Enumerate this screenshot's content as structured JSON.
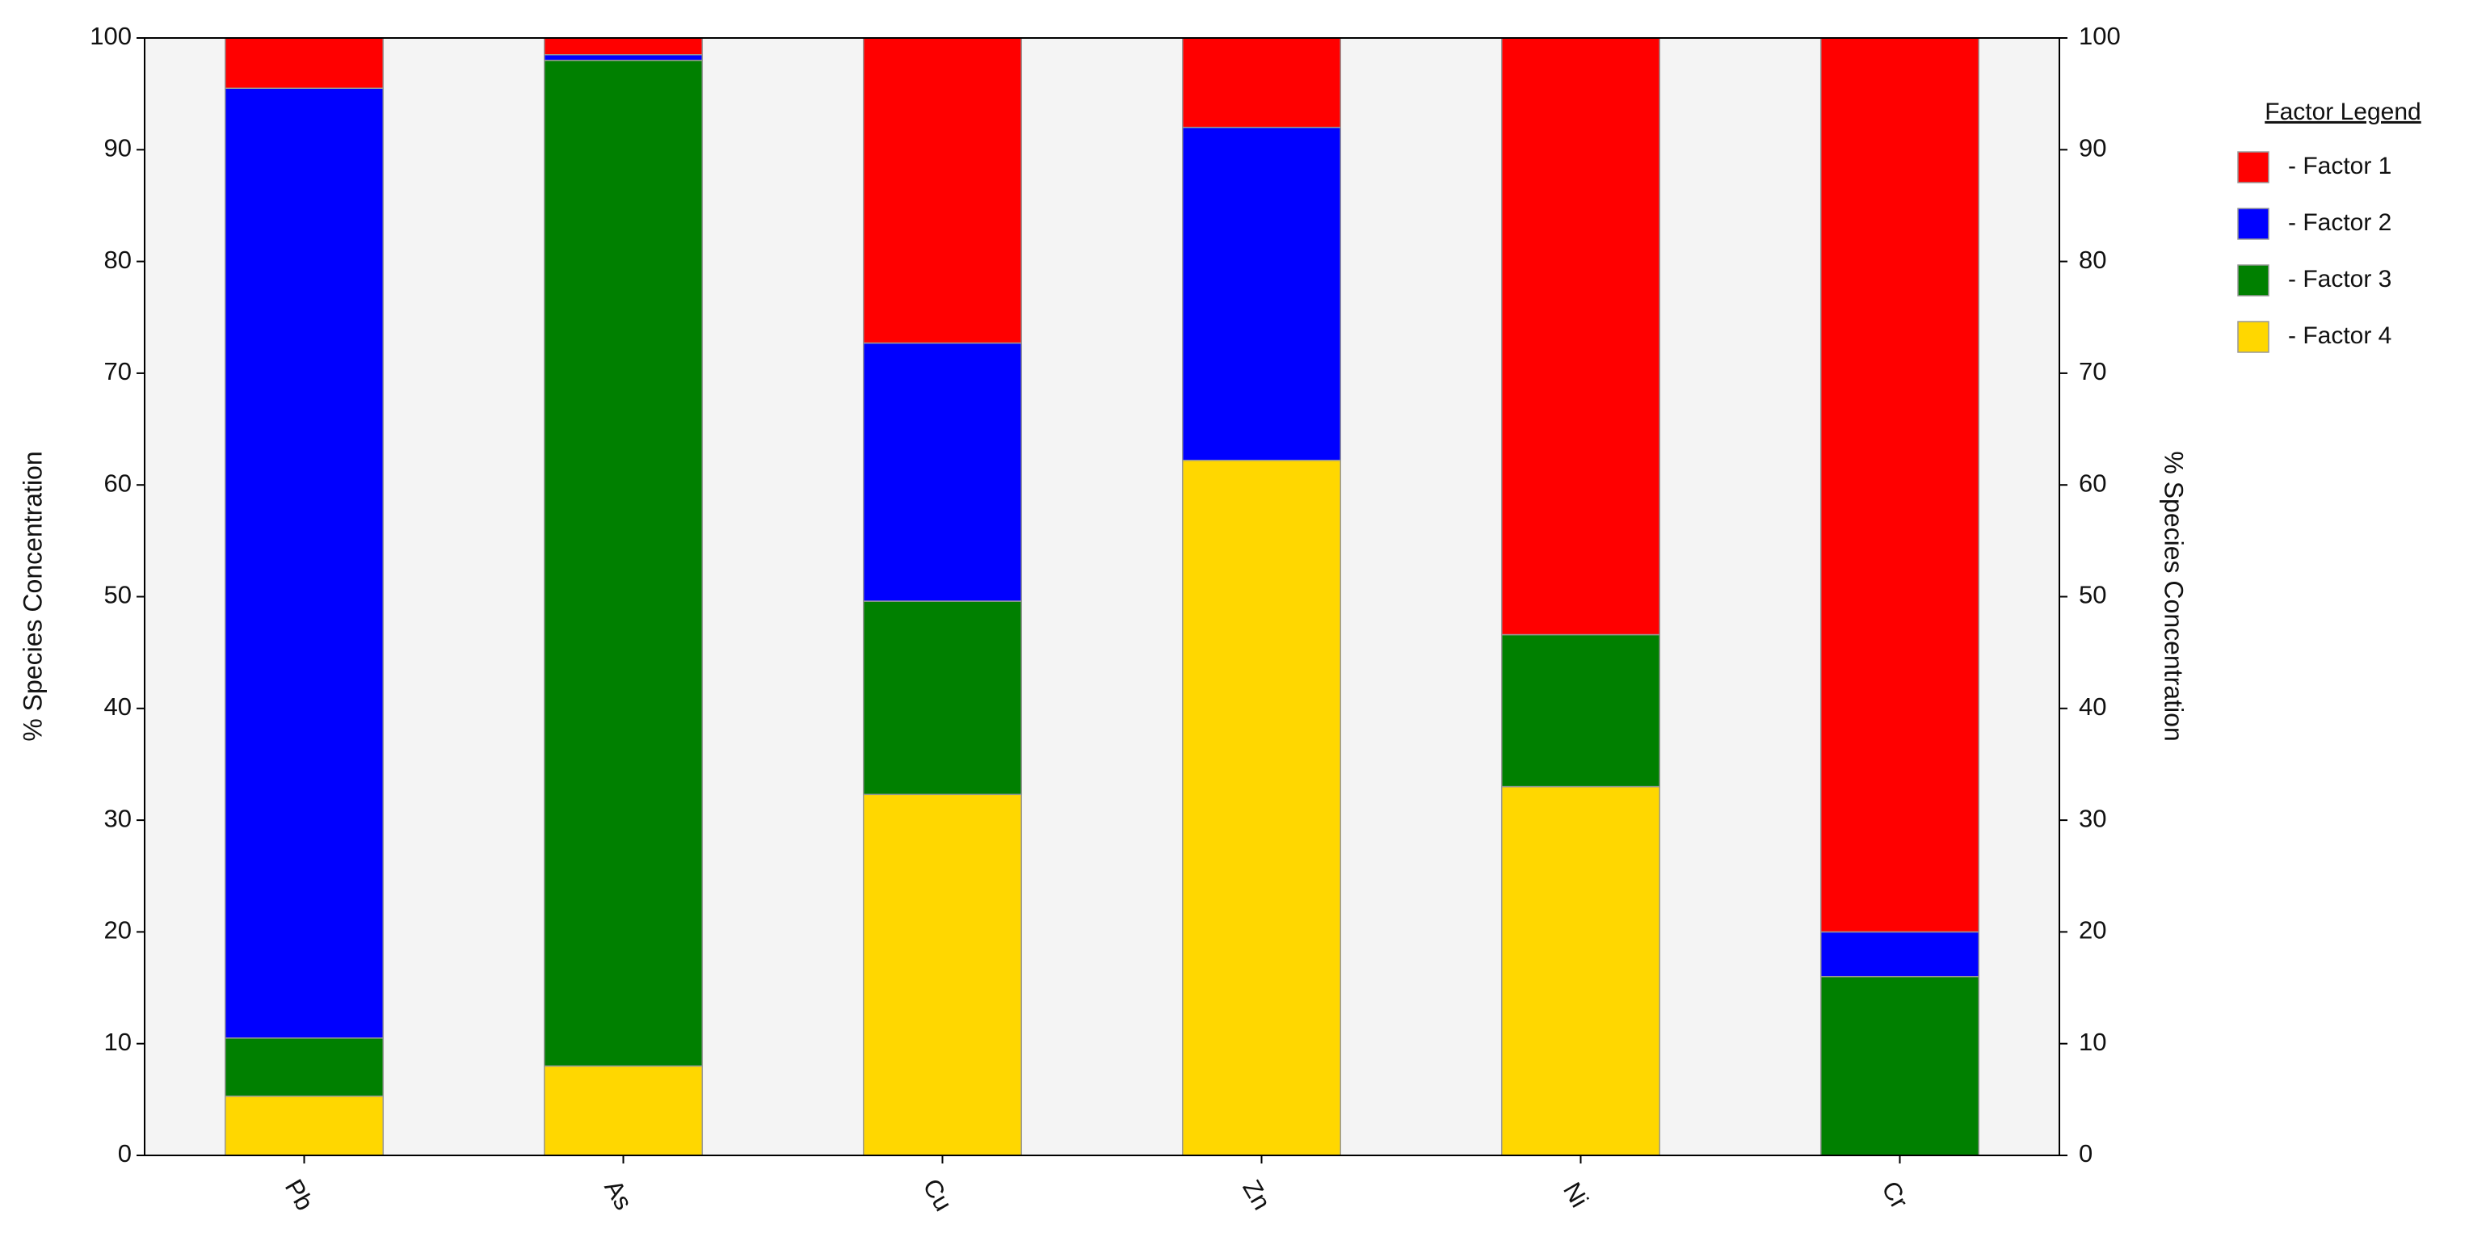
{
  "chart_data": {
    "type": "stacked_bar",
    "ylabel": "% Species Concentration",
    "y2label": "% Species Concentration",
    "legend_title": "Factor Legend",
    "legend_labels": [
      "- Factor 1",
      "- Factor 2",
      "- Factor 3",
      "- Factor 4"
    ],
    "categories": [
      "Pb",
      "As",
      "Cu",
      "Zn",
      "Ni",
      "Cr"
    ],
    "series": [
      {
        "name": "Factor 1",
        "color": "#ff0000",
        "values": [
          4.5,
          1.5,
          27.3,
          8,
          53.4,
          80
        ]
      },
      {
        "name": "Factor 2",
        "color": "#0000ff",
        "values": [
          85,
          0.5,
          23.1,
          29.8,
          0,
          4
        ]
      },
      {
        "name": "Factor 3",
        "color": "#008000",
        "values": [
          5.2,
          90,
          17.3,
          0,
          13.6,
          16
        ]
      },
      {
        "name": "Factor 4",
        "color": "#ffd700",
        "values": [
          5.3,
          8,
          32.3,
          62.2,
          33,
          0
        ]
      }
    ],
    "ylim": [
      0,
      100
    ],
    "yticks": [
      0,
      10,
      20,
      30,
      40,
      50,
      60,
      70,
      80,
      90,
      100
    ],
    "y2lim": [
      0,
      100
    ],
    "y2ticks": [
      0,
      10,
      20,
      30,
      40,
      50,
      60,
      70,
      80,
      90,
      100
    ]
  }
}
